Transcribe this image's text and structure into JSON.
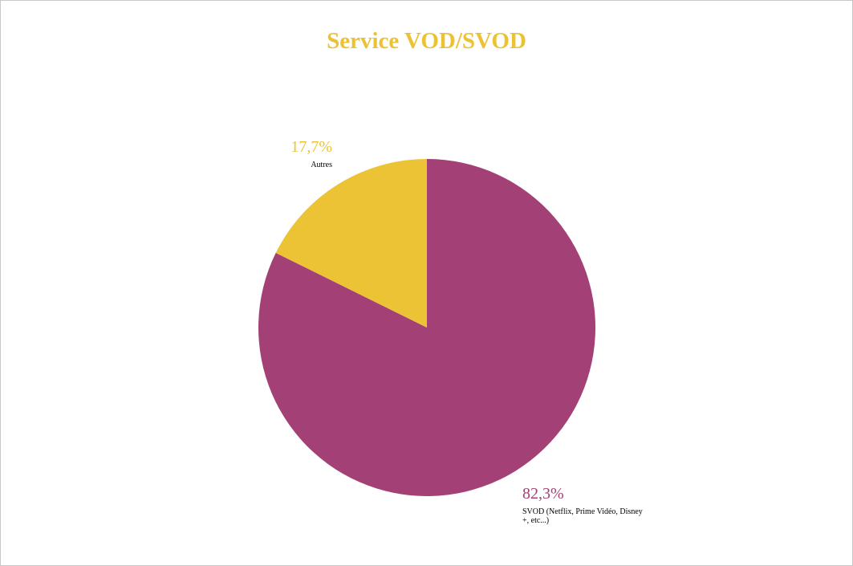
{
  "chart_data": {
    "type": "pie",
    "title": "Service VOD/SVOD",
    "title_color": "#ebc234",
    "slices": [
      {
        "label": "SVOD (Netflix, Prime Vidéo, Disney +, etc...)",
        "label_lines": [
          "SVOD (Netflix, Prime Vidéo, Disney",
          "+, etc...)"
        ],
        "value": 82.3,
        "value_label": "82,3%",
        "color": "#a34177"
      },
      {
        "label": "Autres",
        "label_lines": [
          "Autres"
        ],
        "value": 17.7,
        "value_label": "17,7%",
        "color": "#ebc334"
      }
    ],
    "start_angle_deg": 0,
    "direction": "clockwise",
    "legend": "none"
  }
}
